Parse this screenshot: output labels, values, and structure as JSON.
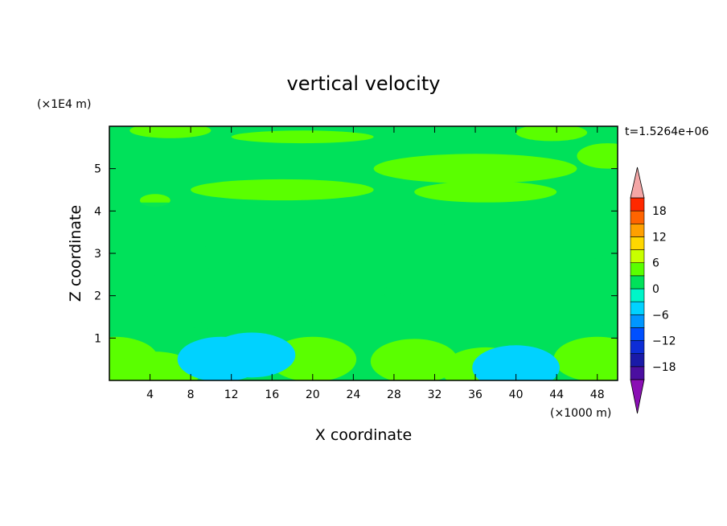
{
  "chart_data": {
    "type": "heatmap",
    "title": "vertical velocity",
    "xlabel": "X coordinate",
    "ylabel": "Z coordinate",
    "x_unit": "(×1000 m)",
    "y_unit": "(×1E4 m)",
    "time_label": "t=1.5264e+06",
    "xlim": [
      0,
      50
    ],
    "ylim": [
      0,
      6
    ],
    "x_ticks": [
      4,
      8,
      12,
      16,
      20,
      24,
      28,
      32,
      36,
      40,
      44,
      48
    ],
    "y_ticks": [
      1,
      2,
      3,
      4,
      5
    ],
    "colorbar": {
      "levels": [
        -21,
        -18,
        -15,
        -12,
        -9,
        -6,
        -3,
        0,
        3,
        6,
        9,
        12,
        15,
        18,
        21
      ],
      "tick_labels": [
        "18",
        "12",
        "6",
        "0",
        "−6",
        "−12",
        "−18"
      ],
      "tick_values": [
        18,
        12,
        6,
        0,
        -6,
        -12,
        -18
      ],
      "colors": [
        "#4b0fa0",
        "#1a1aa8",
        "#0d2dd6",
        "#0050ff",
        "#0096ff",
        "#00d2ff",
        "#00f5c8",
        "#00e15a",
        "#5aff00",
        "#c8ff00",
        "#ffd700",
        "#ffa000",
        "#ff6400",
        "#ff2800"
      ],
      "over_color": "#f4a6a6",
      "under_color": "#8a0fb4"
    },
    "field": {
      "background_value": 1.5,
      "upper_bands": [
        {
          "x": [
            0,
            50
          ],
          "z": [
            4.2,
            6.0
          ],
          "value": 3.0,
          "note": "patchy"
        },
        {
          "x": [
            0,
            50
          ],
          "z": [
            2.0,
            4.2
          ],
          "value": 2.5
        }
      ],
      "lower_features": [
        {
          "x": 20,
          "z": 0.5,
          "value": 8
        },
        {
          "x": 30,
          "z": 0.45,
          "value": 5
        },
        {
          "x": 48,
          "z": 0.5,
          "value": 8
        },
        {
          "x": 0.5,
          "z": 0.5,
          "value": 6
        },
        {
          "x": 4.5,
          "z": 0.15,
          "value": 5
        },
        {
          "x": 37,
          "z": 0.25,
          "value": 4
        },
        {
          "x": 11,
          "z": 0.5,
          "value": -7
        },
        {
          "x": 40,
          "z": 0.3,
          "value": -10
        },
        {
          "x": 14,
          "z": 0.6,
          "value": -5
        }
      ]
    }
  }
}
